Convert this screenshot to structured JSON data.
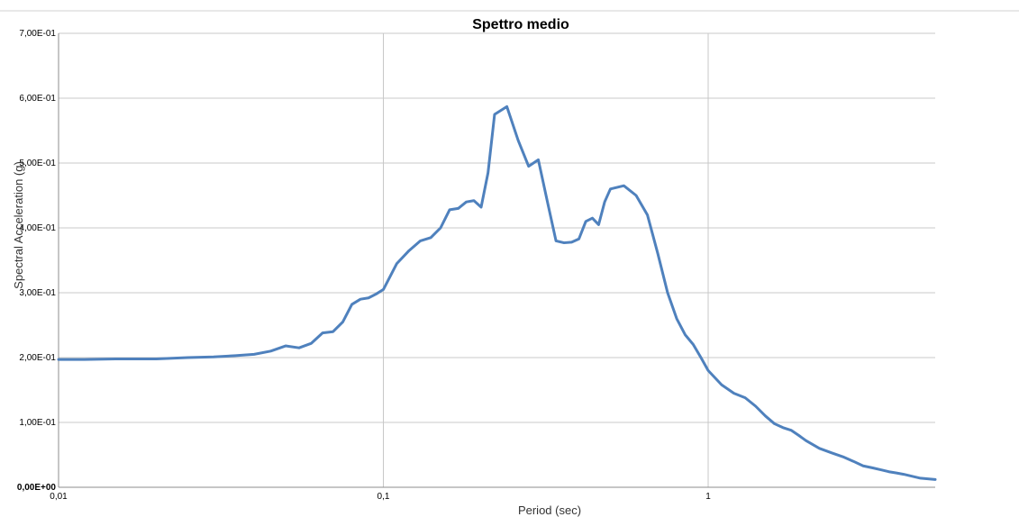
{
  "chart_data": {
    "type": "line",
    "title": "Spettro medio",
    "xlabel": "Period (sec)",
    "ylabel": "Spectral Acceleration (g)",
    "x_scale": "log",
    "xlim": [
      0.01,
      5
    ],
    "ylim": [
      0,
      0.7
    ],
    "x_ticks": [
      {
        "value": 0.01,
        "label": "0,01"
      },
      {
        "value": 0.1,
        "label": "0,1"
      },
      {
        "value": 1,
        "label": "1"
      }
    ],
    "y_ticks": [
      {
        "value": 0.0,
        "label": "0,00E+00"
      },
      {
        "value": 0.1,
        "label": "1,00E-01"
      },
      {
        "value": 0.2,
        "label": "2,00E-01"
      },
      {
        "value": 0.3,
        "label": "3,00E-01"
      },
      {
        "value": 0.4,
        "label": "4,00E-01"
      },
      {
        "value": 0.5,
        "label": "5,00E-01"
      },
      {
        "value": 0.6,
        "label": "6,00E-01"
      },
      {
        "value": 0.7,
        "label": "7,00E-01"
      }
    ],
    "grid": true,
    "legend": "none",
    "line_color": "#4f81bd",
    "series": [
      {
        "x": [
          0.01,
          0.012,
          0.015,
          0.02,
          0.025,
          0.03,
          0.035,
          0.04,
          0.045,
          0.05,
          0.055,
          0.06,
          0.065,
          0.07,
          0.075,
          0.08,
          0.085,
          0.09,
          0.095,
          0.1,
          0.11,
          0.12,
          0.13,
          0.14,
          0.15,
          0.16,
          0.17,
          0.18,
          0.19,
          0.2,
          0.21,
          0.22,
          0.24,
          0.26,
          0.28,
          0.3,
          0.32,
          0.34,
          0.36,
          0.38,
          0.4,
          0.42,
          0.44,
          0.46,
          0.48,
          0.5,
          0.55,
          0.6,
          0.65,
          0.7,
          0.75,
          0.8,
          0.85,
          0.9,
          0.95,
          1.0,
          1.1,
          1.2,
          1.3,
          1.4,
          1.5,
          1.6,
          1.7,
          1.8,
          1.9,
          2.0,
          2.2,
          2.4,
          2.6,
          2.8,
          3.0,
          3.2,
          3.4,
          3.6,
          3.8,
          4.0,
          4.5,
          5.0
        ],
        "y": [
          0.197,
          0.197,
          0.198,
          0.198,
          0.2,
          0.201,
          0.203,
          0.205,
          0.21,
          0.218,
          0.215,
          0.222,
          0.238,
          0.24,
          0.255,
          0.282,
          0.29,
          0.292,
          0.298,
          0.305,
          0.345,
          0.365,
          0.38,
          0.385,
          0.4,
          0.428,
          0.43,
          0.44,
          0.442,
          0.432,
          0.485,
          0.575,
          0.587,
          0.535,
          0.495,
          0.505,
          0.44,
          0.38,
          0.377,
          0.378,
          0.383,
          0.41,
          0.415,
          0.405,
          0.44,
          0.46,
          0.465,
          0.45,
          0.42,
          0.36,
          0.3,
          0.26,
          0.235,
          0.22,
          0.2,
          0.18,
          0.158,
          0.145,
          0.138,
          0.125,
          0.11,
          0.098,
          0.092,
          0.088,
          0.08,
          0.072,
          0.06,
          0.053,
          0.047,
          0.04,
          0.033,
          0.03,
          0.027,
          0.024,
          0.022,
          0.02,
          0.014,
          0.012
        ]
      }
    ]
  }
}
